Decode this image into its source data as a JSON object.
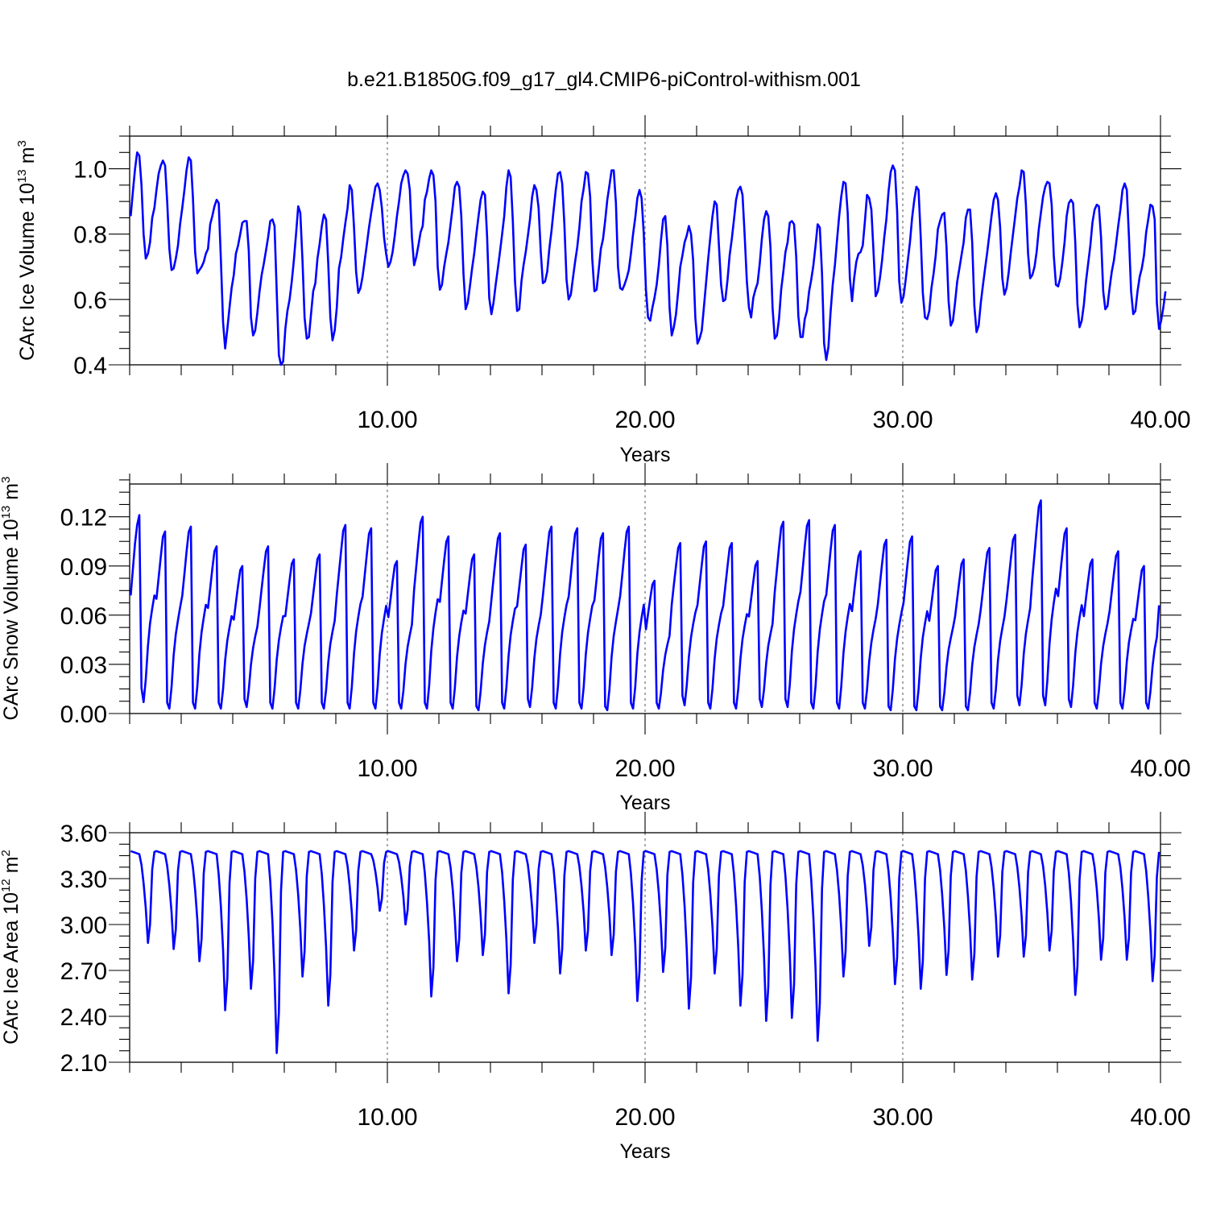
{
  "title": "b.e21.B1850G.f09_g17_gl4.CMIP6-piControl-withism.001",
  "colors": {
    "series": "#0000ff",
    "axes": "#000000",
    "grid": "#555555"
  },
  "chart_data": [
    {
      "type": "line",
      "ylabel_text": "CArc Ice Volume 10",
      "ylabel_exp": "13",
      "ylabel_unit": "m",
      "ylabel_unit_exp": "3",
      "xlabel": "Years",
      "xlim": [
        0.0,
        40.0
      ],
      "ylim": [
        0.4,
        1.1
      ],
      "xtick_values": [
        10,
        20,
        30,
        40
      ],
      "xtick_labels": [
        "10.00",
        "20.00",
        "30.00",
        "40.00"
      ],
      "ytick_values": [
        0.4,
        0.6,
        0.8,
        1.0
      ],
      "ytick_labels": [
        "0.4",
        "0.6",
        "0.8",
        "1.0"
      ],
      "yminor_step": 0.05,
      "xminor_step": 2,
      "grid": "dashed vertical at x ticks",
      "series": [
        {
          "x_start": 0.0417,
          "x_step": 0.0833,
          "y": [
            0.855,
            0.93,
            1.0,
            1.05,
            1.04,
            0.95,
            0.8,
            0.725,
            0.74,
            0.775,
            0.85,
            0.88,
            0.935,
            0.985,
            1.01,
            1.025,
            1.01,
            0.9,
            0.755,
            0.69,
            0.695,
            0.725,
            0.765,
            0.83,
            0.88,
            0.935,
            0.995,
            1.035,
            1.025,
            0.91,
            0.745,
            0.68,
            0.69,
            0.7,
            0.715,
            0.74,
            0.755,
            0.83,
            0.855,
            0.885,
            0.905,
            0.895,
            0.72,
            0.53,
            0.45,
            0.51,
            0.575,
            0.635,
            0.675,
            0.74,
            0.765,
            0.8,
            0.835,
            0.84,
            0.84,
            0.75,
            0.545,
            0.49,
            0.505,
            0.56,
            0.625,
            0.675,
            0.71,
            0.75,
            0.79,
            0.84,
            0.845,
            0.825,
            0.625,
            0.43,
            0.4,
            0.41,
            0.51,
            0.565,
            0.6,
            0.655,
            0.72,
            0.8,
            0.885,
            0.865,
            0.72,
            0.545,
            0.48,
            0.485,
            0.555,
            0.625,
            0.65,
            0.725,
            0.77,
            0.825,
            0.86,
            0.845,
            0.71,
            0.545,
            0.475,
            0.505,
            0.575,
            0.695,
            0.73,
            0.785,
            0.835,
            0.88,
            0.95,
            0.935,
            0.82,
            0.685,
            0.62,
            0.635,
            0.67,
            0.72,
            0.77,
            0.82,
            0.865,
            0.905,
            0.945,
            0.955,
            0.935,
            0.88,
            0.79,
            0.74,
            0.7,
            0.715,
            0.745,
            0.795,
            0.855,
            0.9,
            0.955,
            0.98,
            0.995,
            0.985,
            0.935,
            0.79,
            0.705,
            0.73,
            0.765,
            0.805,
            0.825,
            0.905,
            0.93,
            0.97,
            0.995,
            0.98,
            0.9,
            0.7,
            0.63,
            0.645,
            0.7,
            0.74,
            0.775,
            0.83,
            0.885,
            0.945,
            0.96,
            0.945,
            0.855,
            0.68,
            0.57,
            0.59,
            0.64,
            0.695,
            0.74,
            0.8,
            0.855,
            0.905,
            0.93,
            0.92,
            0.795,
            0.605,
            0.555,
            0.59,
            0.645,
            0.695,
            0.745,
            0.8,
            0.855,
            0.945,
            0.995,
            0.975,
            0.84,
            0.655,
            0.565,
            0.57,
            0.655,
            0.705,
            0.745,
            0.795,
            0.845,
            0.915,
            0.95,
            0.935,
            0.88,
            0.745,
            0.65,
            0.655,
            0.685,
            0.755,
            0.81,
            0.875,
            0.935,
            0.985,
            0.99,
            0.955,
            0.83,
            0.66,
            0.6,
            0.615,
            0.665,
            0.715,
            0.76,
            0.82,
            0.9,
            0.94,
            0.99,
            0.985,
            0.915,
            0.725,
            0.625,
            0.63,
            0.69,
            0.755,
            0.785,
            0.84,
            0.905,
            0.95,
            0.995,
            0.995,
            0.895,
            0.7,
            0.635,
            0.63,
            0.645,
            0.665,
            0.69,
            0.74,
            0.8,
            0.85,
            0.91,
            0.935,
            0.91,
            0.8,
            0.63,
            0.545,
            0.535,
            0.575,
            0.605,
            0.645,
            0.705,
            0.78,
            0.845,
            0.855,
            0.765,
            0.575,
            0.49,
            0.515,
            0.555,
            0.625,
            0.7,
            0.735,
            0.775,
            0.795,
            0.825,
            0.8,
            0.72,
            0.545,
            0.465,
            0.48,
            0.505,
            0.575,
            0.65,
            0.725,
            0.79,
            0.855,
            0.9,
            0.89,
            0.765,
            0.645,
            0.595,
            0.6,
            0.66,
            0.735,
            0.785,
            0.845,
            0.905,
            0.935,
            0.945,
            0.92,
            0.795,
            0.655,
            0.575,
            0.545,
            0.605,
            0.63,
            0.65,
            0.71,
            0.785,
            0.845,
            0.87,
            0.855,
            0.76,
            0.575,
            0.48,
            0.49,
            0.54,
            0.63,
            0.685,
            0.745,
            0.775,
            0.835,
            0.84,
            0.83,
            0.73,
            0.55,
            0.485,
            0.485,
            0.54,
            0.565,
            0.625,
            0.66,
            0.705,
            0.765,
            0.83,
            0.82,
            0.68,
            0.465,
            0.415,
            0.455,
            0.56,
            0.645,
            0.705,
            0.78,
            0.855,
            0.915,
            0.96,
            0.955,
            0.865,
            0.665,
            0.595,
            0.665,
            0.715,
            0.74,
            0.745,
            0.765,
            0.84,
            0.92,
            0.91,
            0.875,
            0.75,
            0.61,
            0.625,
            0.665,
            0.72,
            0.79,
            0.845,
            0.93,
            0.99,
            1.01,
            0.995,
            0.87,
            0.655,
            0.59,
            0.61,
            0.66,
            0.72,
            0.775,
            0.85,
            0.905,
            0.945,
            0.935,
            0.79,
            0.62,
            0.545,
            0.54,
            0.565,
            0.635,
            0.68,
            0.735,
            0.815,
            0.84,
            0.86,
            0.865,
            0.76,
            0.595,
            0.52,
            0.535,
            0.59,
            0.655,
            0.695,
            0.735,
            0.775,
            0.85,
            0.875,
            0.875,
            0.775,
            0.58,
            0.5,
            0.52,
            0.59,
            0.645,
            0.695,
            0.745,
            0.8,
            0.855,
            0.905,
            0.925,
            0.905,
            0.82,
            0.665,
            0.615,
            0.635,
            0.685,
            0.745,
            0.8,
            0.855,
            0.91,
            0.945,
            0.995,
            0.99,
            0.89,
            0.74,
            0.665,
            0.675,
            0.7,
            0.745,
            0.815,
            0.865,
            0.915,
            0.945,
            0.96,
            0.955,
            0.89,
            0.735,
            0.645,
            0.64,
            0.665,
            0.715,
            0.775,
            0.855,
            0.895,
            0.905,
            0.895,
            0.775,
            0.585,
            0.515,
            0.535,
            0.585,
            0.655,
            0.71,
            0.765,
            0.835,
            0.875,
            0.89,
            0.885,
            0.79,
            0.625,
            0.57,
            0.58,
            0.635,
            0.685,
            0.72,
            0.77,
            0.825,
            0.875,
            0.935,
            0.955,
            0.935,
            0.795,
            0.625,
            0.555,
            0.565,
            0.625,
            0.67,
            0.695,
            0.735,
            0.805,
            0.845,
            0.89,
            0.885,
            0.845,
            0.59,
            0.51,
            0.535,
            0.575,
            0.625
          ]
        }
      ]
    },
    {
      "type": "line",
      "ylabel_text": "CArc Snow Volume 10",
      "ylabel_exp": "13",
      "ylabel_unit": "m",
      "ylabel_unit_exp": "3",
      "xlabel": "Years",
      "xlim": [
        0.0,
        40.0
      ],
      "ylim": [
        0.0,
        0.14
      ],
      "xtick_values": [
        10,
        20,
        30,
        40
      ],
      "xtick_labels": [
        "10.00",
        "20.00",
        "30.00",
        "40.00"
      ],
      "ytick_values": [
        0.0,
        0.03,
        0.06,
        0.09,
        0.12
      ],
      "ytick_labels": [
        "0.00",
        "0.03",
        "0.06",
        "0.09",
        "0.12"
      ],
      "yminor_step": 0.0075,
      "xminor_step": 2,
      "grid": "dashed vertical at x ticks",
      "series": [
        {
          "x_start": 0.0417,
          "x_step": 0.0833,
          "peaks": [
            0.121,
            0.111,
            0.114,
            0.102,
            0.09,
            0.102,
            0.094,
            0.097,
            0.115,
            0.113,
            0.093,
            0.12,
            0.108,
            0.097,
            0.11,
            0.103,
            0.114,
            0.113,
            0.11,
            0.114,
            0.081,
            0.104,
            0.105,
            0.104,
            0.093,
            0.117,
            0.118,
            0.115,
            0.099,
            0.106,
            0.108,
            0.09,
            0.094,
            0.101,
            0.109,
            0.13,
            0.113,
            0.094,
            0.099,
            0.09
          ],
          "troughs": [
            0.007,
            0.003,
            0.003,
            0.003,
            0.004,
            0.003,
            0.003,
            0.003,
            0.003,
            0.003,
            0.003,
            0.003,
            0.003,
            0.002,
            0.003,
            0.004,
            0.003,
            0.003,
            0.002,
            0.003,
            0.003,
            0.005,
            0.003,
            0.003,
            0.004,
            0.004,
            0.003,
            0.003,
            0.003,
            0.002,
            0.002,
            0.002,
            0.002,
            0.003,
            0.005,
            0.005,
            0.004,
            0.003,
            0.003,
            0.003
          ]
        }
      ]
    },
    {
      "type": "line",
      "ylabel_text": "CArc Ice Area 10",
      "ylabel_exp": "12",
      "ylabel_unit": "m",
      "ylabel_unit_exp": "2",
      "xlabel": "Years",
      "xlim": [
        0.0,
        40.0
      ],
      "ylim": [
        2.1,
        3.6
      ],
      "xtick_values": [
        10,
        20,
        30,
        40
      ],
      "xtick_labels": [
        "10.00",
        "20.00",
        "30.00",
        "40.00"
      ],
      "ytick_values": [
        2.1,
        2.4,
        2.7,
        3.0,
        3.3,
        3.6
      ],
      "ytick_labels": [
        "2.10",
        "2.40",
        "2.70",
        "3.00",
        "3.30",
        "3.60"
      ],
      "yminor_step": 0.075,
      "xminor_step": 2,
      "grid": "dashed vertical at x ticks",
      "series": [
        {
          "x_start": 0.0417,
          "x_step": 0.0833,
          "plateau": 3.48,
          "minima": [
            2.88,
            2.84,
            2.76,
            2.44,
            2.58,
            2.16,
            2.66,
            2.47,
            2.83,
            3.09,
            3.0,
            2.53,
            2.76,
            2.8,
            2.55,
            2.88,
            2.68,
            2.83,
            2.8,
            2.5,
            2.69,
            2.45,
            2.68,
            2.47,
            2.37,
            2.39,
            2.24,
            2.66,
            2.86,
            2.61,
            2.58,
            2.67,
            2.64,
            2.79,
            2.79,
            2.83,
            2.54,
            2.77,
            2.77,
            2.63
          ]
        }
      ]
    }
  ]
}
